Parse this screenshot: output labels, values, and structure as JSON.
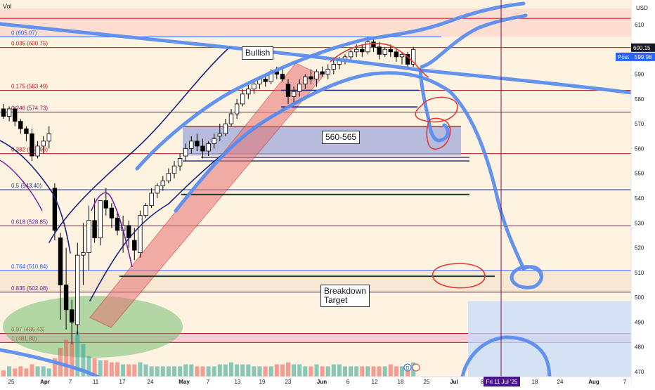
{
  "chart_data": {
    "type": "candlestick",
    "price_scale": {
      "currency": "USD",
      "range": [
        470,
        615
      ],
      "ticks": [
        470,
        480,
        490,
        500,
        510,
        520,
        530,
        540,
        550,
        560,
        570,
        580,
        590,
        600,
        610
      ],
      "last_price": "600.15",
      "post_label": "Post",
      "post_price": "599.98"
    },
    "indicator_label": "Vol",
    "x_labels": [
      "25",
      "Apr",
      "7",
      "11",
      "17",
      "24",
      "May",
      "7",
      "13",
      "19",
      "23",
      "Jun",
      "6",
      "12",
      "18",
      "25",
      "Jul",
      "8",
      "18",
      "24",
      "Aug",
      "7"
    ],
    "crosshair_label": "Fri 11 Jul '25",
    "fib_levels": [
      {
        "label": "0 (605.07)",
        "price": 605.07,
        "color": "#2962ff"
      },
      {
        "label": "0.035 (600.75)",
        "price": 600.75,
        "color": "#b71c1c"
      },
      {
        "label": "0.175 (583.49)",
        "price": 583.49,
        "color": "#b71c1c"
      },
      {
        "label": "0.246 (574.73)",
        "price": 574.73,
        "color": "#880e4f"
      },
      {
        "label": "0.382 (557.96)",
        "price": 557.96,
        "color": "#b71c1c"
      },
      {
        "label": "0.5 (543.40)",
        "price": 543.4,
        "color": "#1e3a8a"
      },
      {
        "label": "0.618 (528.85)",
        "price": 528.85,
        "color": "#6a1b9a"
      },
      {
        "label": "0.764 (510.84)",
        "price": 510.84,
        "color": "#2962ff"
      },
      {
        "label": "0.835 (502.08)",
        "price": 502.08,
        "color": "#6a1b9a"
      },
      {
        "label": "0.97 (485.43)",
        "price": 485.43,
        "color": "#b71c1c"
      },
      {
        "label": "1 (481.80)",
        "price": 481.8,
        "color": "#b71c1c"
      }
    ],
    "candles": [
      [
        576,
        578,
        572,
        573
      ],
      [
        573,
        577,
        571,
        576
      ],
      [
        576,
        577,
        569,
        571
      ],
      [
        571,
        572,
        566,
        568
      ],
      [
        568,
        569,
        563,
        566
      ],
      [
        566,
        568,
        555,
        557
      ],
      [
        557,
        563,
        556,
        561
      ],
      [
        561,
        565,
        558,
        563
      ],
      [
        563,
        569,
        560,
        566
      ],
      [
        544,
        546,
        523,
        527
      ],
      [
        524,
        526,
        491,
        505
      ],
      [
        505,
        520,
        487,
        495
      ],
      [
        495,
        499,
        481,
        490
      ],
      [
        489,
        522,
        485,
        517
      ],
      [
        517,
        530,
        505,
        518
      ],
      [
        518,
        537,
        511,
        531
      ],
      [
        531,
        540,
        522,
        524
      ],
      [
        524,
        539,
        521,
        539
      ],
      [
        539,
        544,
        533,
        536
      ],
      [
        536,
        538,
        528,
        532
      ],
      [
        532,
        534,
        525,
        527
      ],
      [
        527,
        533,
        518,
        529
      ],
      [
        529,
        531,
        520,
        524
      ],
      [
        523,
        528,
        515,
        519
      ],
      [
        518,
        535,
        516,
        533
      ],
      [
        533,
        538,
        532,
        537
      ],
      [
        537,
        544,
        536,
        542
      ],
      [
        542,
        546,
        540,
        545
      ],
      [
        545,
        549,
        543,
        547
      ],
      [
        547,
        552,
        546,
        550
      ],
      [
        550,
        555,
        548,
        553
      ],
      [
        553,
        558,
        551,
        556
      ],
      [
        557,
        562,
        555,
        560
      ],
      [
        560,
        565,
        558,
        563
      ],
      [
        563,
        566,
        559,
        561
      ],
      [
        561,
        564,
        556,
        559
      ],
      [
        559,
        563,
        557,
        562
      ],
      [
        562,
        566,
        560,
        564
      ],
      [
        565,
        570,
        563,
        566
      ],
      [
        566,
        572,
        565,
        570
      ],
      [
        570,
        576,
        569,
        574
      ],
      [
        574,
        580,
        572,
        578
      ],
      [
        578,
        584,
        577,
        582
      ],
      [
        582,
        586,
        580,
        584
      ],
      [
        584,
        587,
        582,
        586
      ],
      [
        586,
        589,
        584,
        588
      ],
      [
        588,
        590,
        585,
        587
      ],
      [
        587,
        592,
        586,
        591
      ],
      [
        591,
        593,
        588,
        590
      ],
      [
        590,
        593,
        587,
        588
      ],
      [
        586,
        588,
        578,
        581
      ],
      [
        581,
        585,
        578,
        583
      ],
      [
        583,
        588,
        581,
        586
      ],
      [
        586,
        590,
        584,
        589
      ],
      [
        589,
        592,
        586,
        588
      ],
      [
        588,
        592,
        585,
        591
      ],
      [
        591,
        593,
        589,
        590
      ],
      [
        590,
        594,
        588,
        592
      ],
      [
        592,
        596,
        590,
        594
      ],
      [
        594,
        597,
        592,
        596
      ],
      [
        596,
        598,
        594,
        597
      ],
      [
        597,
        600,
        596,
        599
      ],
      [
        599,
        602,
        597,
        600
      ],
      [
        600,
        602,
        597,
        599
      ],
      [
        599,
        605,
        598,
        603
      ],
      [
        603,
        605,
        599,
        601
      ],
      [
        601,
        603,
        596,
        598
      ],
      [
        598,
        601,
        597,
        600
      ],
      [
        600,
        602,
        597,
        599
      ],
      [
        599,
        600,
        595,
        597
      ],
      [
        597,
        599,
        594,
        598
      ],
      [
        598,
        599,
        592,
        594
      ],
      [
        594,
        601,
        593,
        600
      ]
    ],
    "volume": [
      3,
      5,
      4,
      5,
      4,
      6,
      5,
      5,
      4,
      9,
      14,
      18,
      17,
      22,
      16,
      10,
      9,
      8,
      8,
      7,
      7,
      6,
      6,
      6,
      7,
      6,
      5,
      5,
      5,
      5,
      5,
      5,
      6,
      6,
      5,
      5,
      5,
      5,
      6,
      6,
      7,
      6,
      6,
      6,
      5,
      5,
      5,
      5,
      6,
      6,
      7,
      6,
      6,
      5,
      5,
      6,
      5,
      5,
      6,
      6,
      5,
      5,
      5,
      5,
      5,
      5,
      5,
      5,
      6,
      5,
      5,
      6,
      7
    ],
    "annotations": {
      "bullish": "Bullish",
      "box_560_565": "560-565",
      "breakdown_target": "Breakdown\nTarget"
    },
    "colors": {
      "up_body": "#ffffff",
      "down_body": "#000000",
      "volume_up": "#26a69a",
      "volume_down": "#ef5350",
      "hand_drawn": "#5b8def",
      "circles": "#e53935",
      "crosshair": "#880e4f",
      "channel": "#1a237e",
      "axis_badge": "#2962ff",
      "crosshair_badge": "#4a148c"
    }
  }
}
